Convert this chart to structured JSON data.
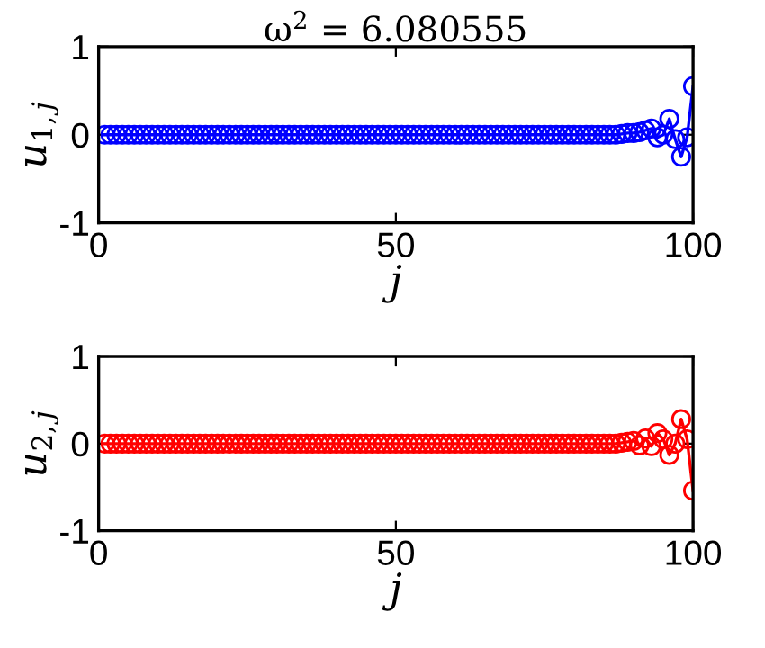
{
  "chart_data": [
    {
      "type": "line",
      "title": "ω$^{2}$ = 6.080555",
      "xlabel": "j",
      "ylabel": "u$_{1,j}$",
      "marker": "circle",
      "line_style": "solid",
      "grid": false,
      "legend": false,
      "x": [
        1,
        2,
        3,
        4,
        5,
        6,
        7,
        8,
        9,
        10,
        11,
        12,
        13,
        14,
        15,
        16,
        17,
        18,
        19,
        20,
        21,
        22,
        23,
        24,
        25,
        26,
        27,
        28,
        29,
        30,
        31,
        32,
        33,
        34,
        35,
        36,
        37,
        38,
        39,
        40,
        41,
        42,
        43,
        44,
        45,
        46,
        47,
        48,
        49,
        50,
        51,
        52,
        53,
        54,
        55,
        56,
        57,
        58,
        59,
        60,
        61,
        62,
        63,
        64,
        65,
        66,
        67,
        68,
        69,
        70,
        71,
        72,
        73,
        74,
        75,
        76,
        77,
        78,
        79,
        80,
        81,
        82,
        83,
        84,
        85,
        86,
        87,
        88,
        89,
        90,
        91,
        92,
        93,
        94,
        95,
        96,
        97,
        98,
        99,
        100
      ],
      "series": [
        {
          "color": "#0000ff",
          "values": [
            0,
            0,
            0,
            0,
            0,
            0,
            0,
            0,
            0,
            0,
            0,
            0,
            0,
            0,
            0,
            0,
            0,
            0,
            0,
            0,
            0,
            0,
            0,
            0,
            0,
            0,
            0,
            0,
            0,
            0,
            0,
            0,
            0,
            0,
            0,
            0,
            0,
            0,
            0,
            0,
            0,
            0,
            0,
            0,
            0,
            0,
            0,
            0,
            0,
            0,
            0,
            0,
            0,
            0,
            0,
            0,
            0,
            0,
            0,
            0,
            0,
            0,
            0,
            0,
            0,
            0,
            0,
            0,
            0,
            0,
            0,
            0,
            0,
            0,
            0,
            0,
            0,
            0,
            0,
            0,
            0,
            0,
            0,
            0,
            0,
            0,
            0,
            0.01,
            0.02,
            0.02,
            0.03,
            0.05,
            0.07,
            -0.03,
            0.0,
            0.18,
            -0.05,
            -0.25,
            -0.03,
            0.55
          ]
        }
      ],
      "xlim": [
        0,
        100
      ],
      "ylim": [
        -1,
        1
      ],
      "xticks": [
        0,
        50,
        100
      ],
      "yticks": [
        -1,
        0,
        1
      ]
    },
    {
      "type": "line",
      "xlabel": "j",
      "ylabel": "u$_{2,j}$",
      "marker": "circle",
      "line_style": "solid",
      "grid": false,
      "legend": false,
      "x": [
        1,
        2,
        3,
        4,
        5,
        6,
        7,
        8,
        9,
        10,
        11,
        12,
        13,
        14,
        15,
        16,
        17,
        18,
        19,
        20,
        21,
        22,
        23,
        24,
        25,
        26,
        27,
        28,
        29,
        30,
        31,
        32,
        33,
        34,
        35,
        36,
        37,
        38,
        39,
        40,
        41,
        42,
        43,
        44,
        45,
        46,
        47,
        48,
        49,
        50,
        51,
        52,
        53,
        54,
        55,
        56,
        57,
        58,
        59,
        60,
        61,
        62,
        63,
        64,
        65,
        66,
        67,
        68,
        69,
        70,
        71,
        72,
        73,
        74,
        75,
        76,
        77,
        78,
        79,
        80,
        81,
        82,
        83,
        84,
        85,
        86,
        87,
        88,
        89,
        90,
        91,
        92,
        93,
        94,
        95,
        96,
        97,
        98,
        99,
        100
      ],
      "series": [
        {
          "color": "#ff0000",
          "values": [
            0,
            0,
            0,
            0,
            0,
            0,
            0,
            0,
            0,
            0,
            0,
            0,
            0,
            0,
            0,
            0,
            0,
            0,
            0,
            0,
            0,
            0,
            0,
            0,
            0,
            0,
            0,
            0,
            0,
            0,
            0,
            0,
            0,
            0,
            0,
            0,
            0,
            0,
            0,
            0,
            0,
            0,
            0,
            0,
            0,
            0,
            0,
            0,
            0,
            0,
            0,
            0,
            0,
            0,
            0,
            0,
            0,
            0,
            0,
            0,
            0,
            0,
            0,
            0,
            0,
            0,
            0,
            0,
            0,
            0,
            0,
            0,
            0,
            0,
            0,
            0,
            0,
            0,
            0,
            0,
            0,
            0,
            0,
            0,
            0,
            0,
            0,
            0.01,
            0.02,
            0.03,
            -0.02,
            0.06,
            -0.03,
            0.12,
            0.05,
            -0.13,
            0.0,
            0.28,
            0.05,
            -0.54
          ]
        }
      ],
      "xlim": [
        0,
        100
      ],
      "ylim": [
        -1,
        1
      ],
      "xticks": [
        0,
        50,
        100
      ],
      "yticks": [
        -1,
        0,
        1
      ]
    }
  ]
}
